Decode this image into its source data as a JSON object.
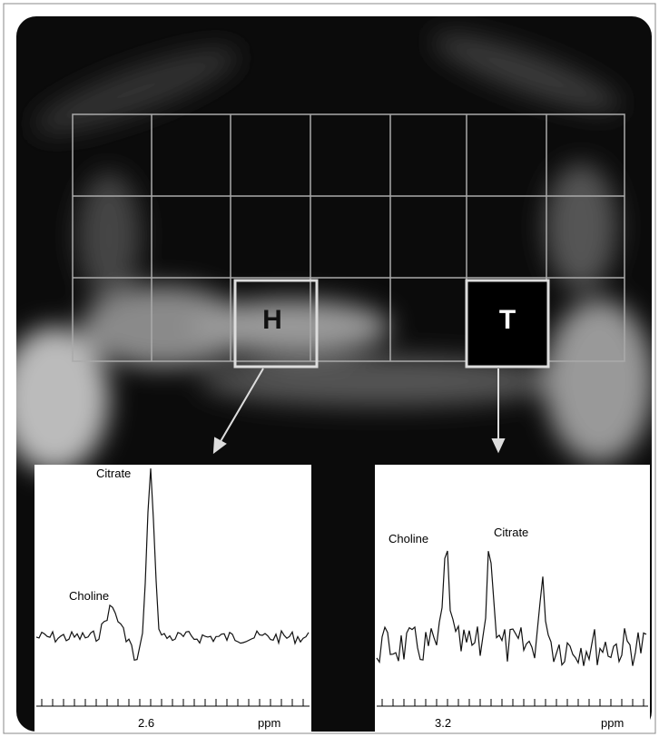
{
  "image": {
    "voxels": [
      {
        "label": "H"
      },
      {
        "label": "T"
      }
    ]
  },
  "spectra": [
    {
      "peaks": [
        "Citrate",
        "Choline"
      ],
      "axis": {
        "tick": "2.6",
        "unit": "ppm"
      }
    },
    {
      "peaks": [
        "Choline",
        "Citrate"
      ],
      "axis": {
        "tick": "3.2",
        "unit": "ppm"
      }
    }
  ]
}
